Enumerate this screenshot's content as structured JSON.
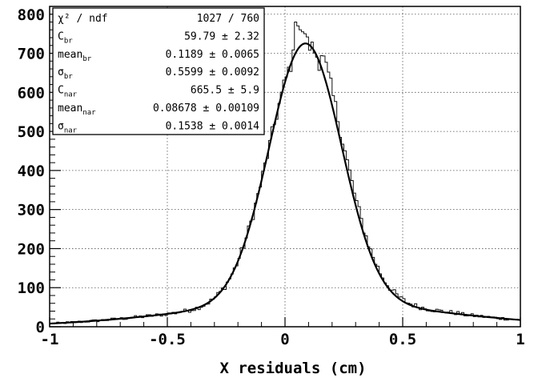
{
  "chart_data": {
    "type": "line",
    "xlabel": "X residuals (cm)",
    "ylabel": "",
    "xlim": [
      -1,
      1
    ],
    "ylim": [
      0,
      820
    ],
    "grid": true,
    "x_ticks": [
      {
        "value": -1,
        "label": "-1"
      },
      {
        "value": -0.5,
        "label": "-0.5"
      },
      {
        "value": 0,
        "label": "0"
      },
      {
        "value": 0.5,
        "label": "0.5"
      },
      {
        "value": 1,
        "label": "1"
      }
    ],
    "y_ticks": [
      {
        "value": 0,
        "label": "0"
      },
      {
        "value": 100,
        "label": "100"
      },
      {
        "value": 200,
        "label": "200"
      },
      {
        "value": 300,
        "label": "300"
      },
      {
        "value": 400,
        "label": "400"
      },
      {
        "value": 500,
        "label": "500"
      },
      {
        "value": 600,
        "label": "600"
      },
      {
        "value": 700,
        "label": "700"
      },
      {
        "value": 800,
        "label": "800"
      }
    ],
    "fit": {
      "c_br": 59.79,
      "mean_br": 0.1189,
      "sigma_br": 0.5599,
      "c_nar": 665.5,
      "mean_nar": 0.08678,
      "sigma_nar": 0.1538
    },
    "histogram_spikes": [
      {
        "x": 0.045,
        "y": 780
      },
      {
        "x": 0.055,
        "y": 770
      },
      {
        "x": 0.065,
        "y": 760
      },
      {
        "x": 0.075,
        "y": 755
      },
      {
        "x": 0.085,
        "y": 750
      }
    ],
    "stats_box": {
      "rows": [
        {
          "label": "χ² / ndf",
          "sub": "",
          "value": "1027 / 760"
        },
        {
          "label": "C",
          "sub": "br",
          "value": "59.79 ± 2.32"
        },
        {
          "label": "mean",
          "sub": "br",
          "value": "0.1189 ± 0.0065"
        },
        {
          "label": "σ",
          "sub": "br",
          "value": "0.5599 ± 0.0092"
        },
        {
          "label": "C",
          "sub": "nar",
          "value": "665.5 ± 5.9"
        },
        {
          "label": "mean",
          "sub": "nar",
          "value": "0.08678 ± 0.00109"
        },
        {
          "label": "σ",
          "sub": "nar",
          "value": "0.1538 ± 0.0014"
        }
      ]
    }
  }
}
